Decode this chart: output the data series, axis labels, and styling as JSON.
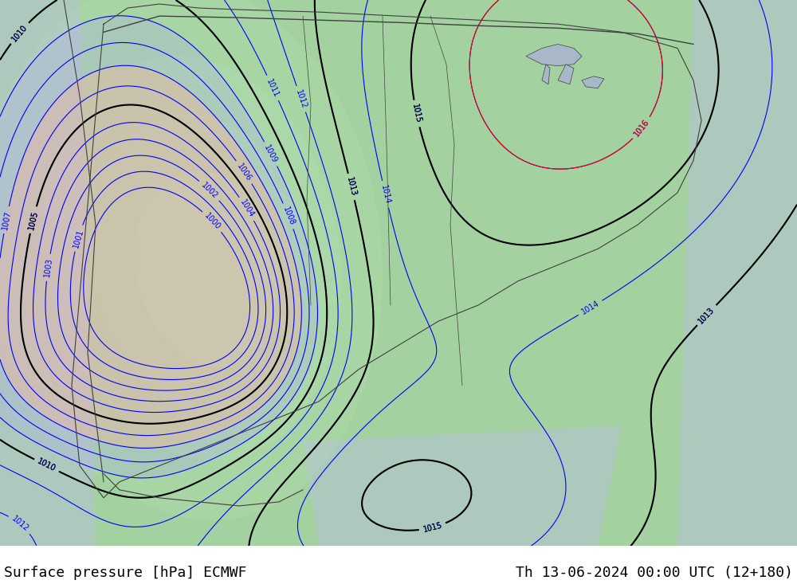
{
  "title_left": "Surface pressure [hPa] ECMWF",
  "title_right": "Th 13-06-2024 00:00 UTC (12+180)",
  "background_color": "#c8d8c8",
  "map_background": "#a8d8a8",
  "label_fontsize": 13,
  "label_color": "#000000",
  "figure_width": 10.0,
  "figure_height": 7.33,
  "dpi": 100,
  "bottom_bar_color": "#e8e8e8",
  "contour_blue": "#0000ff",
  "contour_red": "#ff0000",
  "contour_black": "#000000",
  "land_green_light": "#b8d8b0",
  "land_green_medium": "#98c890",
  "ocean_gray": "#c0c0c8",
  "high_pressure_color": "#d0e8d0",
  "low_pressure_color": "#e8d0d0"
}
